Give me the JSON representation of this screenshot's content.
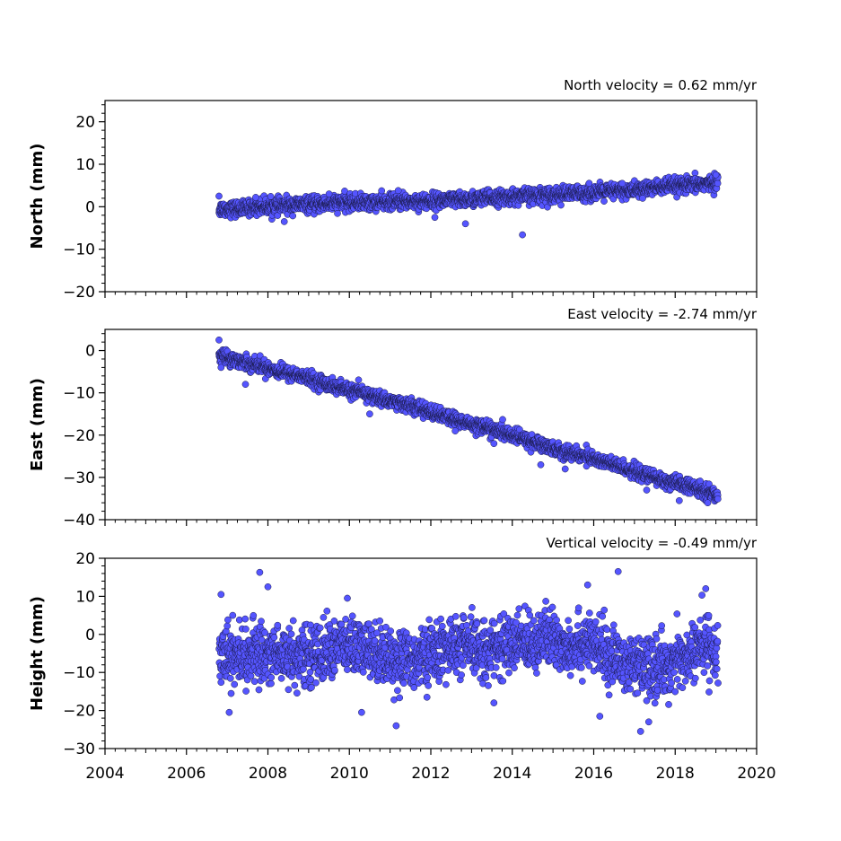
{
  "chart_data": [
    {
      "type": "scatter",
      "title": "North velocity = 0.62 mm/yr",
      "ylabel": "North (mm)",
      "xlim": [
        2004,
        2020
      ],
      "ylim": [
        -20,
        25
      ],
      "yticks": [
        -20,
        -10,
        0,
        10,
        20
      ],
      "xticks": [
        2004,
        2006,
        2008,
        2010,
        2012,
        2014,
        2016,
        2018,
        2020
      ],
      "show_xtick_labels": false,
      "marker_color": "#5555ff",
      "marker_edge": "#1a1a4a",
      "series": [
        {
          "x": [
            2006.8,
            2007.3,
            2007.8,
            2008.3,
            2008.8,
            2009.3,
            2009.8,
            2010.3,
            2010.8,
            2011.3,
            2011.8,
            2012.3,
            2012.8,
            2013.3,
            2013.8,
            2014.3,
            2014.8,
            2015.3,
            2015.8,
            2016.3,
            2016.8,
            2017.3,
            2017.8,
            2018.3,
            2018.8,
            2019.05
          ],
          "y": [
            -0.5,
            -0.5,
            0,
            0.2,
            0.5,
            0.5,
            1,
            1,
            1,
            1.2,
            1.3,
            1.5,
            1.6,
            2,
            2.2,
            2.5,
            2.8,
            3,
            3.2,
            3.5,
            3.8,
            4.2,
            4.8,
            5,
            5.5,
            5.8
          ],
          "scatter_half_width": 1.4
        },
        {
          "x": [
            2014.25,
            2006.8,
            2007.7,
            2008.4,
            2012.1,
            2012.85,
            2011.2,
            2009.5,
            2016.7,
            2017.2,
            2019.0
          ],
          "y": [
            -6.6,
            2.5,
            2.2,
            -3.5,
            -2.5,
            -4,
            3.8,
            3,
            5.5,
            2,
            7.5
          ],
          "scatter_half_width": 0
        }
      ]
    },
    {
      "type": "scatter",
      "title": "East velocity = -2.74 mm/yr",
      "ylabel": "East (mm)",
      "xlim": [
        2004,
        2020
      ],
      "ylim": [
        -40,
        5
      ],
      "yticks": [
        -40,
        -30,
        -20,
        -10,
        0
      ],
      "xticks": [
        2004,
        2006,
        2008,
        2010,
        2012,
        2014,
        2016,
        2018,
        2020
      ],
      "show_xtick_labels": false,
      "marker_color": "#5555ff",
      "marker_edge": "#1a1a4a",
      "series": [
        {
          "x": [
            2006.8,
            2007.3,
            2007.8,
            2008.3,
            2008.8,
            2009.3,
            2009.8,
            2010.3,
            2010.8,
            2011.3,
            2011.8,
            2012.3,
            2012.8,
            2013.3,
            2013.8,
            2014.3,
            2014.8,
            2015.3,
            2015.8,
            2016.3,
            2016.8,
            2017.3,
            2017.8,
            2018.3,
            2018.8,
            2019.05
          ],
          "y": [
            -1,
            -2.5,
            -3.5,
            -5,
            -6,
            -7.5,
            -9,
            -10,
            -11.5,
            -12.5,
            -14,
            -15.5,
            -17,
            -18,
            -19.5,
            -21,
            -22.5,
            -24,
            -25,
            -26.5,
            -28,
            -29.5,
            -31,
            -32,
            -33.5,
            -34.5
          ],
          "scatter_half_width": 1.3
        },
        {
          "x": [
            2006.8,
            2006.85,
            2007.45,
            2010.5,
            2012.6,
            2013.55,
            2014.7,
            2015.3,
            2017.3,
            2018.8,
            2018.1
          ],
          "y": [
            2.5,
            -4,
            -8,
            -15,
            -19,
            -22,
            -27,
            -28,
            -33,
            -36,
            -35.5
          ],
          "scatter_half_width": 0
        }
      ]
    },
    {
      "type": "scatter",
      "title": "Vertical velocity = -0.49 mm/yr",
      "ylabel": "Height (mm)",
      "xlim": [
        2004,
        2020
      ],
      "ylim": [
        -30,
        20
      ],
      "yticks": [
        -30,
        -20,
        -10,
        0,
        10,
        20
      ],
      "xticks": [
        2004,
        2006,
        2008,
        2010,
        2012,
        2014,
        2016,
        2018,
        2020
      ],
      "xtick_labels": [
        "2004",
        "2006",
        "2008",
        "2010",
        "2012",
        "2014",
        "2016",
        "2018",
        "2020"
      ],
      "show_xtick_labels": true,
      "marker_color": "#5555ff",
      "marker_edge": "#1a1a4a",
      "series": [
        {
          "x": [
            2006.8,
            2007.3,
            2007.8,
            2008.3,
            2008.8,
            2009.3,
            2009.8,
            2010.3,
            2010.8,
            2011.3,
            2011.8,
            2012.3,
            2012.8,
            2013.3,
            2013.8,
            2014.3,
            2014.8,
            2015.3,
            2015.8,
            2016.3,
            2016.8,
            2017.3,
            2017.8,
            2018.3,
            2018.8,
            2019.05
          ],
          "y": [
            -4,
            -6,
            -5,
            -5,
            -6,
            -5,
            -3,
            -4,
            -5,
            -7,
            -6,
            -4,
            -3,
            -4,
            -3,
            -2,
            -1,
            -3,
            -2,
            -5,
            -8,
            -9,
            -8,
            -6,
            -2,
            -5
          ],
          "scatter_half_width": 6
        },
        {
          "x": [
            2007.8,
            2008.0,
            2006.85,
            2007.05,
            2011.15,
            2016.6,
            2017.15,
            2017.35,
            2016.15,
            2018.75,
            2010.3,
            2013.55,
            2015.85,
            2009.95
          ],
          "y": [
            16.3,
            12.5,
            10.5,
            -20.5,
            -24,
            16.5,
            -25.5,
            -23,
            -21.5,
            12,
            -20.5,
            -18,
            13,
            9.5
          ],
          "scatter_half_width": 0
        }
      ]
    }
  ]
}
